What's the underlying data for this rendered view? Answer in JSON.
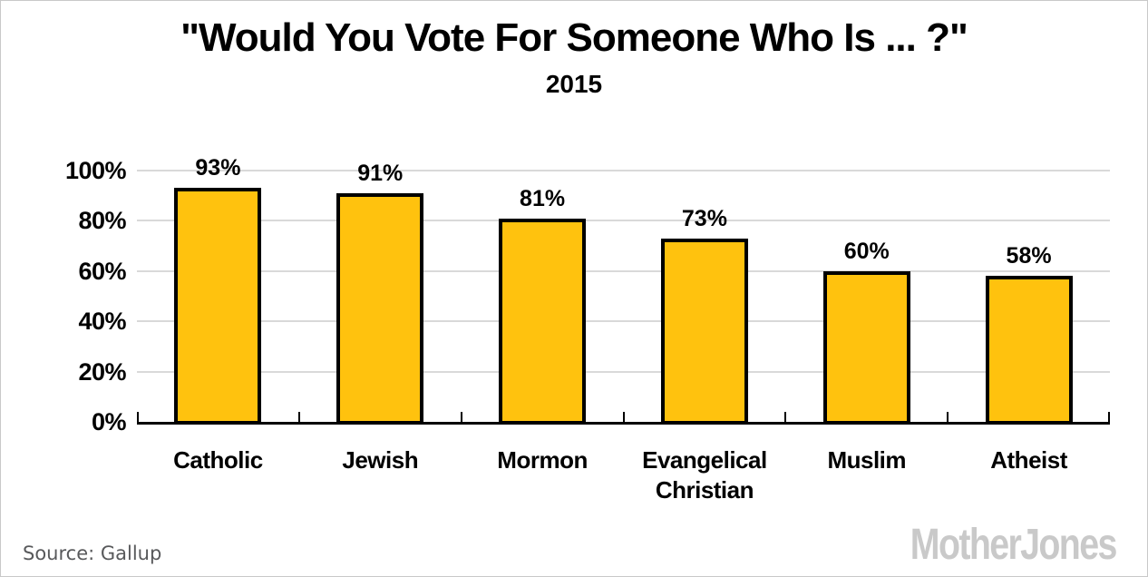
{
  "header": {
    "title": "\"Would You Vote For Someone Who Is ... ?\"",
    "subtitle": "2015"
  },
  "chart_data": {
    "type": "bar",
    "title": "\"Would You Vote For Someone Who Is ... ?\"",
    "subtitle": "2015",
    "categories": [
      "Catholic",
      "Jewish",
      "Mormon",
      "Evangelical Christian",
      "Muslim",
      "Atheist"
    ],
    "values": [
      93,
      91,
      81,
      73,
      60,
      58
    ],
    "value_labels": [
      "93%",
      "91%",
      "81%",
      "73%",
      "60%",
      "58%"
    ],
    "y_tick_values": [
      0,
      20,
      40,
      60,
      80,
      100
    ],
    "y_ticks": [
      "0%",
      "20%",
      "40%",
      "60%",
      "80%",
      "100%"
    ],
    "ylim": [
      0,
      100
    ],
    "grid": true,
    "legend": "none",
    "bar_color": "#FFC20E",
    "bar_border_color": "#000000",
    "gridline_color": "#D9D9D9",
    "axis_color": "#000000"
  },
  "footer": {
    "source": "Source:  Gallup",
    "logo": "MotherJones",
    "source_color": "#58595B",
    "logo_color": "#C9C9C9"
  }
}
